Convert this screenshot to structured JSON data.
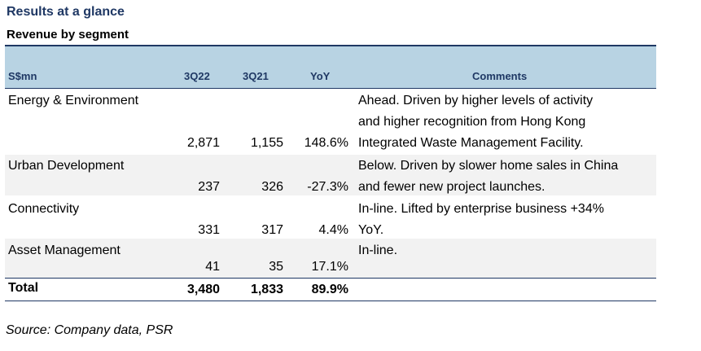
{
  "title": "Results at a glance",
  "subtitle": "Revenue by segment",
  "columns": {
    "segment": "S$mn",
    "q3_22": "3Q22",
    "q3_21": "3Q21",
    "yoy": "YoY",
    "comments": "Comments"
  },
  "rows": [
    {
      "segment": "Energy & Environment",
      "q3_22": "2,871",
      "q3_21": "1,155",
      "yoy": "148.6%",
      "comment_lines": [
        "Ahead. Driven by higher levels of activity",
        "and higher recognition from Hong Kong",
        "Integrated Waste Management Facility."
      ]
    },
    {
      "segment": "Urban Development",
      "q3_22": "237",
      "q3_21": "326",
      "yoy": "-27.3%",
      "comment_lines": [
        "Below. Driven by slower home sales in China",
        "and fewer new project launches."
      ]
    },
    {
      "segment": "Connectivity",
      "q3_22": "331",
      "q3_21": "317",
      "yoy": "4.4%",
      "comment_lines": [
        "In-line. Lifted by enterprise business +34%",
        "YoY."
      ]
    },
    {
      "segment": "Asset Management",
      "q3_22": "41",
      "q3_21": "35",
      "yoy": "17.1%",
      "comment_lines": [
        "In-line."
      ]
    }
  ],
  "total": {
    "segment": "Total",
    "q3_22": "3,480",
    "q3_21": "1,833",
    "yoy": "89.9%"
  },
  "source": "Source: Company data, PSR",
  "colors": {
    "header_bg": "#b8d3e3",
    "header_text": "#1f3864",
    "title_text": "#1f3864",
    "shaded_row": "#f2f2f2"
  }
}
